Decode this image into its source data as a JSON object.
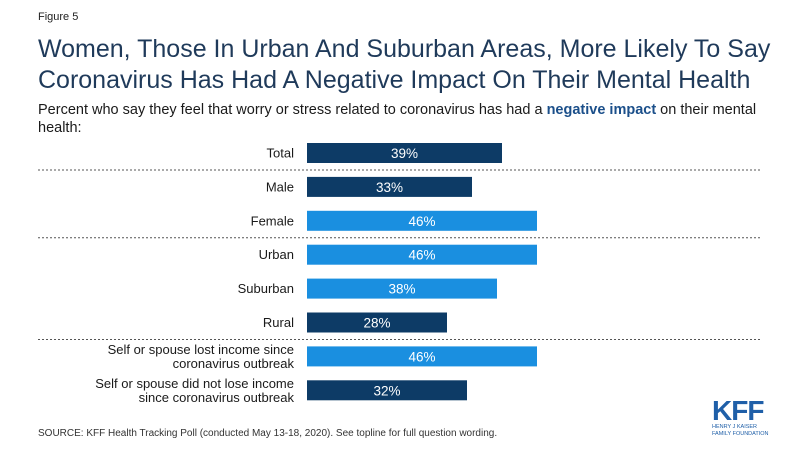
{
  "figure_label": "Figure 5",
  "title": "Women, Those In Urban And Suburban Areas, More Likely To Say Coronavirus Has Had A Negative Impact On Their Mental Health",
  "subtitle": {
    "before": "Percent who say they feel that worry or stress related to coronavirus has had a ",
    "emphasis": "negative impact",
    "after": " on their mental health:"
  },
  "colors": {
    "dark": "#0d3b66",
    "light": "#1a8fe0",
    "divider": "#555555",
    "logo": "#1f5fa8"
  },
  "chart_data": {
    "type": "bar",
    "orientation": "horizontal",
    "xlim": [
      0,
      100
    ],
    "unit": "%",
    "categories": [
      [
        "Total"
      ],
      [
        "Male"
      ],
      [
        "Female"
      ],
      [
        "Urban"
      ],
      [
        "Suburban"
      ],
      [
        "Rural"
      ],
      [
        "Self or spouse lost income since",
        "coronavirus outbreak"
      ],
      [
        "Self or spouse did not lose income",
        "since coronavirus outbreak"
      ]
    ],
    "values": [
      39,
      33,
      46,
      46,
      38,
      28,
      46,
      32
    ],
    "value_labels": [
      "39%",
      "33%",
      "46%",
      "46%",
      "38%",
      "28%",
      "46%",
      "32%"
    ],
    "bar_colors": [
      "dark",
      "dark",
      "light",
      "light",
      "light",
      "dark",
      "light",
      "dark"
    ],
    "dividers_after_index": [
      0,
      2,
      5
    ]
  },
  "source": "SOURCE: KFF Health Tracking Poll (conducted May 13-18, 2020). See topline for full question wording.",
  "logo": {
    "mark": "KFF",
    "sub_line1": "HENRY J KAISER",
    "sub_line2": "FAMILY FOUNDATION"
  }
}
